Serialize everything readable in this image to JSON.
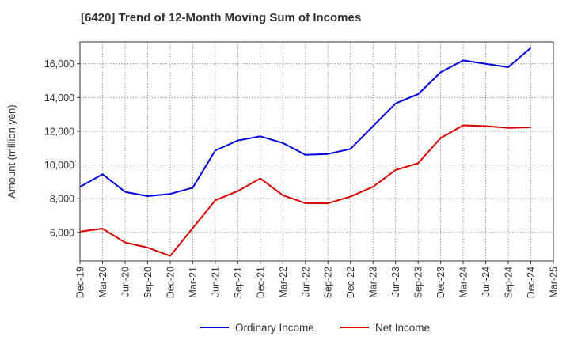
{
  "chart_data": {
    "type": "line",
    "title": "[6420]  Trend of 12-Month Moving Sum of Incomes",
    "xlabel": "",
    "ylabel": "Amount (million yen)",
    "categories": [
      "Dec-19",
      "Mar-20",
      "Jun-20",
      "Sep-20",
      "Dec-20",
      "Mar-21",
      "Jun-21",
      "Sep-21",
      "Dec-21",
      "Mar-22",
      "Jun-22",
      "Sep-22",
      "Dec-22",
      "Mar-23",
      "Jun-23",
      "Sep-23",
      "Dec-23",
      "Mar-24",
      "Jun-24",
      "Sep-24",
      "Dec-24",
      "Mar-25"
    ],
    "ylim": [
      4300,
      17300
    ],
    "yticks": [
      6000,
      8000,
      10000,
      12000,
      14000,
      16000
    ],
    "ytick_labels": [
      "6,000",
      "8,000",
      "10,000",
      "12,000",
      "14,000",
      "16,000"
    ],
    "grid": true,
    "legend_position": "bottom-center",
    "series": [
      {
        "name": "Ordinary Income",
        "color": "#0000dd",
        "values": [
          8700,
          9450,
          8400,
          8150,
          8280,
          8650,
          10850,
          11450,
          11700,
          11300,
          10600,
          10650,
          10950,
          12300,
          13650,
          14200,
          15500,
          16200,
          16000,
          15800,
          16950,
          null
        ]
      },
      {
        "name": "Net Income",
        "color": "#dd0000",
        "values": [
          6050,
          6220,
          5400,
          5100,
          4600,
          6250,
          7900,
          8450,
          9200,
          8200,
          7730,
          7720,
          8120,
          8700,
          9700,
          10100,
          11600,
          12350,
          12300,
          12200,
          12230,
          null
        ]
      }
    ]
  }
}
